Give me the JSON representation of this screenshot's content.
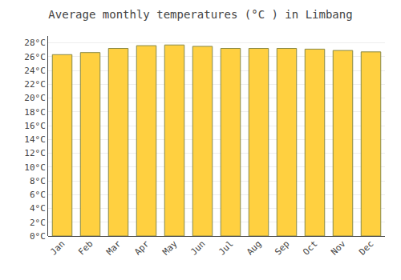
{
  "chart_data": {
    "type": "bar",
    "title": "Average monthly temperatures (°C ) in Limbang",
    "categories": [
      "Jan",
      "Feb",
      "Mar",
      "Apr",
      "May",
      "Jun",
      "Jul",
      "Aug",
      "Sep",
      "Oct",
      "Nov",
      "Dec"
    ],
    "values": [
      26.3,
      26.6,
      27.2,
      27.6,
      27.7,
      27.5,
      27.2,
      27.2,
      27.2,
      27.1,
      26.9,
      26.7
    ],
    "color": "#FFD040",
    "ylim": [
      0,
      29
    ],
    "yticks": [
      {
        "value": 0,
        "label": "0°C"
      },
      {
        "value": 2,
        "label": "2°C"
      },
      {
        "value": 4,
        "label": "4°C"
      },
      {
        "value": 6,
        "label": "6°C"
      },
      {
        "value": 8,
        "label": "8°C"
      },
      {
        "value": 10,
        "label": "10°C"
      },
      {
        "value": 12,
        "label": "12°C"
      },
      {
        "value": 14,
        "label": "14°C"
      },
      {
        "value": 16,
        "label": "16°C"
      },
      {
        "value": 18,
        "label": "18°C"
      },
      {
        "value": 20,
        "label": "20°C"
      },
      {
        "value": 22,
        "label": "22°C"
      },
      {
        "value": 24,
        "label": "24°C"
      },
      {
        "value": 26,
        "label": "26°C"
      },
      {
        "value": 28,
        "label": "28°C"
      }
    ],
    "grid": true
  }
}
